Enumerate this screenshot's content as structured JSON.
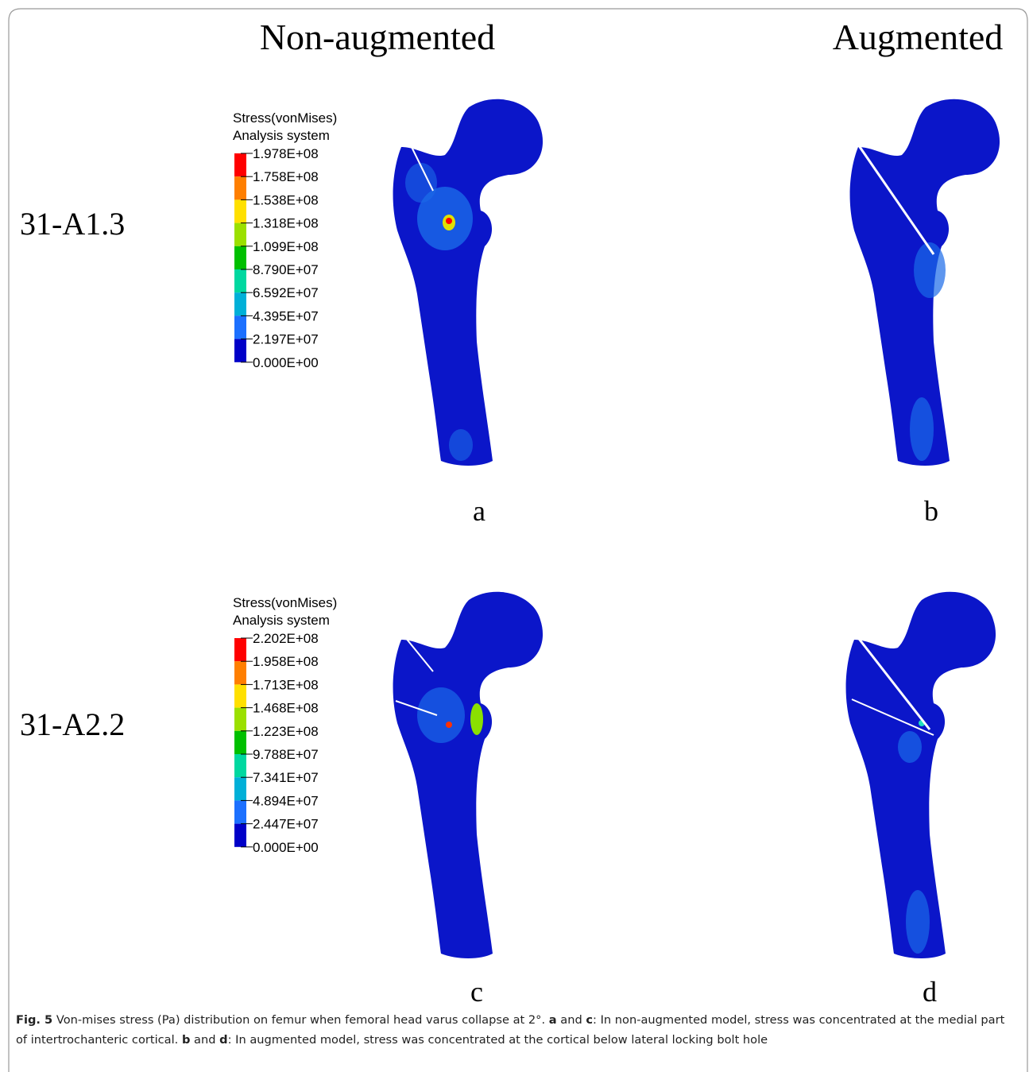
{
  "column_headers": [
    "Non-augmented",
    "Augmented"
  ],
  "row_labels": [
    "31-A1.3",
    "31-A2.2"
  ],
  "legends": [
    {
      "title_lines": [
        "Stress(vonMises)",
        "Analysis system"
      ],
      "labels": [
        "1.978E+08",
        "1.758E+08",
        "1.538E+08",
        "1.318E+08",
        "1.099E+08",
        "8.790E+07",
        "6.592E+07",
        "4.395E+07",
        "2.197E+07",
        "0.000E+00"
      ]
    },
    {
      "title_lines": [
        "Stress(vonMises)",
        "Analysis system"
      ],
      "labels": [
        "2.202E+08",
        "1.958E+08",
        "1.713E+08",
        "1.468E+08",
        "1.223E+08",
        "9.788E+07",
        "7.341E+07",
        "4.894E+07",
        "2.447E+07",
        "0.000E+00"
      ]
    }
  ],
  "panel_labels": [
    "a",
    "b",
    "c",
    "d"
  ],
  "caption": [
    {
      "text": "Fig. 5",
      "bold": true
    },
    {
      "text": "  Von-mises stress (Pa) distribution on femur when femoral head varus collapse at 2°. ",
      "bold": false
    },
    {
      "text": "a",
      "bold": true
    },
    {
      "text": " and ",
      "bold": false
    },
    {
      "text": "c",
      "bold": true
    },
    {
      "text": ": In non-augmented model, stress was concentrated at the medial part of intertrochanteric cortical. ",
      "bold": false
    },
    {
      "text": "b",
      "bold": true
    },
    {
      "text": " and ",
      "bold": false
    },
    {
      "text": "d",
      "bold": true
    },
    {
      "text": ": In augmented model, stress was concentrated at the cortical below lateral locking bolt hole",
      "bold": false
    }
  ]
}
